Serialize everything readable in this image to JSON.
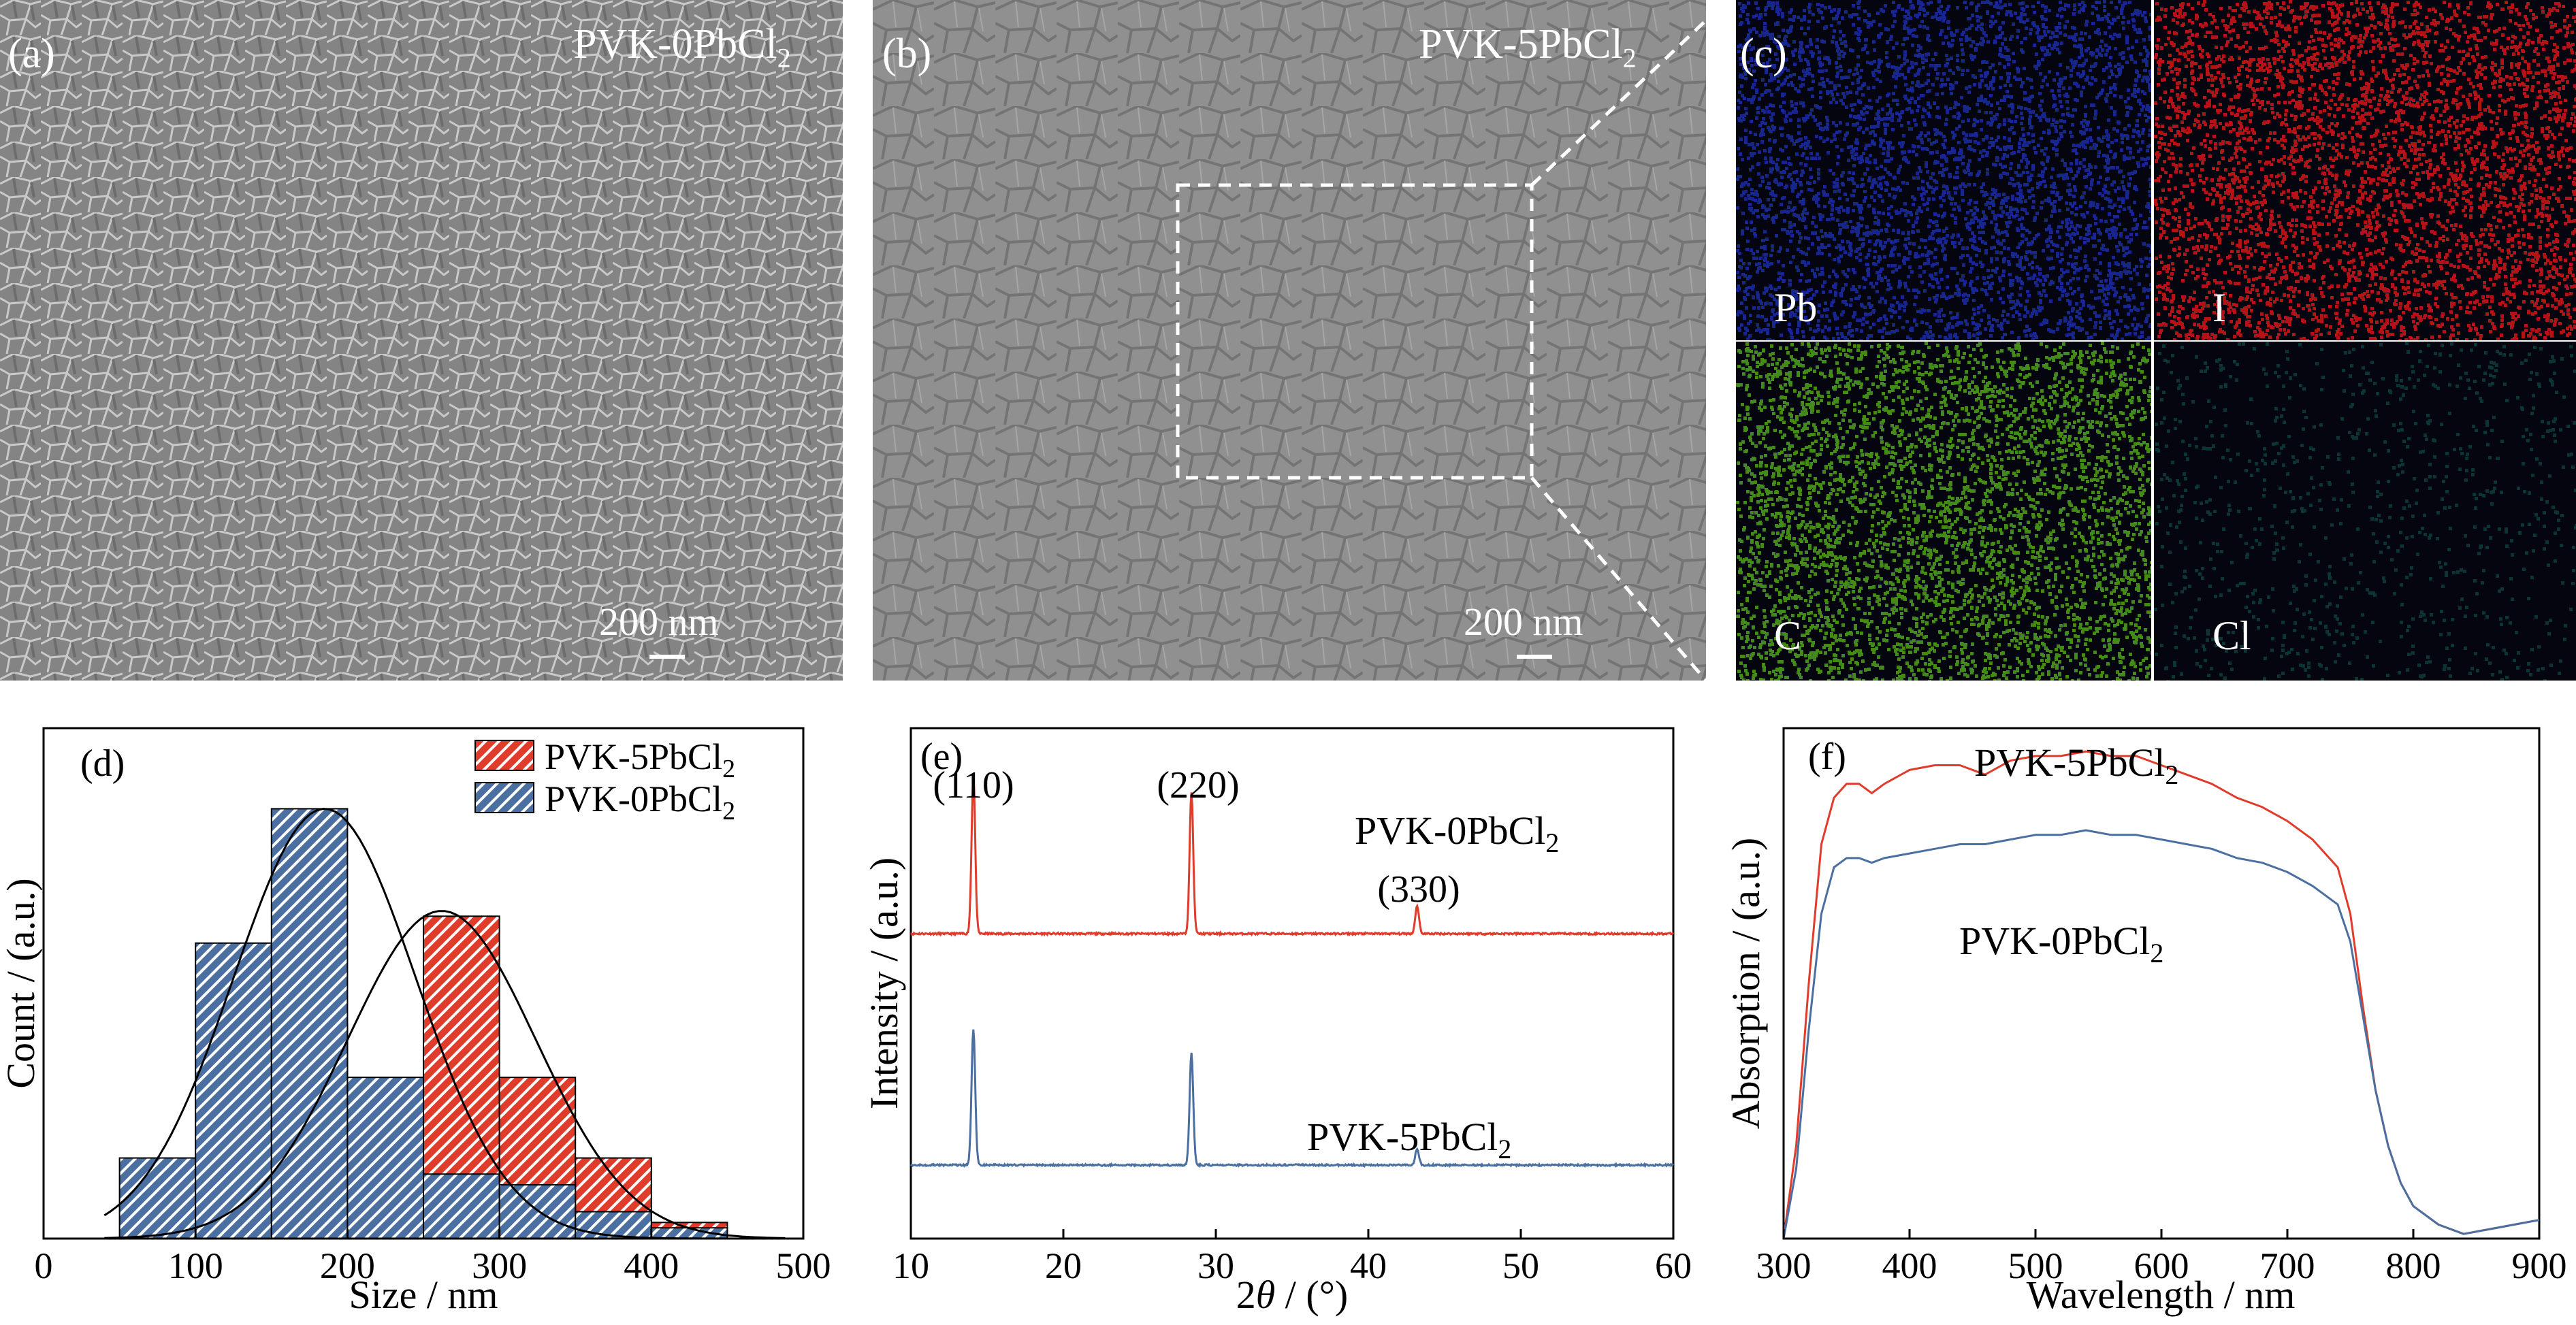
{
  "sem_a": {
    "label": "(a)",
    "title": "PVK-0PbCl",
    "title_sub": "2",
    "scale": "200 nm"
  },
  "sem_b": {
    "label": "(b)",
    "title": "PVK-5PbCl",
    "title_sub": "2",
    "scale": "200 nm"
  },
  "eds": {
    "label": "(c)",
    "maps": [
      {
        "element": "Pb",
        "color": "#1a2a9a"
      },
      {
        "element": "I",
        "color": "#c81418"
      },
      {
        "element": "C",
        "color": "#4a9a1a"
      },
      {
        "element": "Cl",
        "color": "#0c3a3a"
      }
    ]
  },
  "chart_data": [
    {
      "panel": "(d)",
      "type": "bar",
      "xlabel": "Size / nm",
      "ylabel": "Count / (a.u.)",
      "xlim": [
        0,
        500
      ],
      "ylim": [
        0,
        9.5
      ],
      "xticks": [
        0,
        100,
        200,
        300,
        400,
        500
      ],
      "legend_position": "top-right",
      "bin_width": 50,
      "series": [
        {
          "name": "PVK-5PbCl2",
          "color": "#e03c2c",
          "hatch": "diagonal",
          "x": [
            125,
            175,
            225,
            275,
            325,
            375,
            425
          ],
          "values": [
            1,
            4,
            3,
            6,
            3,
            1.5,
            0.3
          ]
        },
        {
          "name": "PVK-0PbCl2",
          "color": "#4a6fa0",
          "hatch": "diagonal",
          "x": [
            75,
            125,
            175,
            225,
            275,
            325,
            375,
            425
          ],
          "values": [
            1.5,
            5.5,
            8,
            3,
            1.2,
            1,
            0.5,
            0.2
          ]
        }
      ],
      "fits": [
        {
          "series": "PVK-0PbCl2",
          "type": "gaussian",
          "amplitude": 8,
          "center": 185,
          "sigma": 60
        },
        {
          "series": "PVK-5PbCl2",
          "type": "gaussian",
          "amplitude": 6.1,
          "center": 262,
          "sigma": 62
        }
      ]
    },
    {
      "panel": "(e)",
      "type": "line",
      "xlabel": "2θ / (°)",
      "ylabel": "Intensity / (a.u.)",
      "xlim": [
        10,
        60
      ],
      "xticks": [
        10,
        20,
        30,
        40,
        50,
        60
      ],
      "peaks": [
        {
          "label": "(110)",
          "two_theta": 14.1
        },
        {
          "label": "(220)",
          "two_theta": 28.4
        },
        {
          "label": "(330)",
          "two_theta": 43.2
        }
      ],
      "series": [
        {
          "name": "PVK-0PbCl2",
          "color": "#e03c2c",
          "peak_positions": [
            14.1,
            28.4,
            43.2
          ],
          "peak_heights": [
            1.0,
            0.9,
            0.18
          ]
        },
        {
          "name": "PVK-5PbCl2",
          "color": "#4a6fa0",
          "peak_positions": [
            14.1,
            28.4,
            43.2
          ],
          "peak_heights": [
            1.0,
            0.82,
            0.12
          ]
        }
      ]
    },
    {
      "panel": "(f)",
      "type": "line",
      "xlabel": "Wavelength / nm",
      "ylabel": "Absorption / (a.u.)",
      "xlim": [
        300,
        900
      ],
      "ylim": [
        0,
        1.1
      ],
      "xticks": [
        300,
        400,
        500,
        600,
        700,
        800,
        900
      ],
      "series": [
        {
          "name": "PVK-5PbCl2",
          "color": "#e03c2c",
          "x": [
            300,
            310,
            320,
            330,
            340,
            350,
            360,
            370,
            380,
            400,
            420,
            440,
            460,
            480,
            500,
            520,
            540,
            560,
            580,
            600,
            620,
            640,
            660,
            680,
            700,
            720,
            740,
            750,
            760,
            770,
            780,
            790,
            800,
            820,
            840,
            860,
            880,
            900
          ],
          "values": [
            0.0,
            0.2,
            0.55,
            0.85,
            0.95,
            0.98,
            0.98,
            0.96,
            0.98,
            1.01,
            1.02,
            1.02,
            1.0,
            1.03,
            1.04,
            1.04,
            1.05,
            1.04,
            1.04,
            1.02,
            1.0,
            0.98,
            0.95,
            0.93,
            0.9,
            0.86,
            0.8,
            0.7,
            0.5,
            0.32,
            0.2,
            0.12,
            0.07,
            0.03,
            0.01,
            0.02,
            0.03,
            0.04
          ]
        },
        {
          "name": "PVK-0PbCl2",
          "color": "#4a6fa0",
          "x": [
            300,
            310,
            320,
            330,
            340,
            350,
            360,
            370,
            380,
            400,
            420,
            440,
            460,
            480,
            500,
            520,
            540,
            560,
            580,
            600,
            620,
            640,
            660,
            680,
            700,
            720,
            740,
            750,
            760,
            770,
            780,
            790,
            800,
            820,
            840,
            860,
            880,
            900
          ],
          "values": [
            0.0,
            0.15,
            0.45,
            0.7,
            0.8,
            0.82,
            0.82,
            0.81,
            0.82,
            0.83,
            0.84,
            0.85,
            0.85,
            0.86,
            0.87,
            0.87,
            0.88,
            0.87,
            0.87,
            0.86,
            0.85,
            0.84,
            0.82,
            0.81,
            0.79,
            0.76,
            0.72,
            0.64,
            0.48,
            0.32,
            0.2,
            0.12,
            0.07,
            0.03,
            0.01,
            0.02,
            0.03,
            0.04
          ]
        }
      ]
    }
  ],
  "labels": {
    "d": "(d)",
    "e": "(e)",
    "f": "(f)",
    "e_top": "PVK-0PbCl",
    "e_bottom": "PVK-5PbCl",
    "f_top": "PVK-5PbCl",
    "f_bottom": "PVK-0PbCl",
    "sub2": "2"
  }
}
